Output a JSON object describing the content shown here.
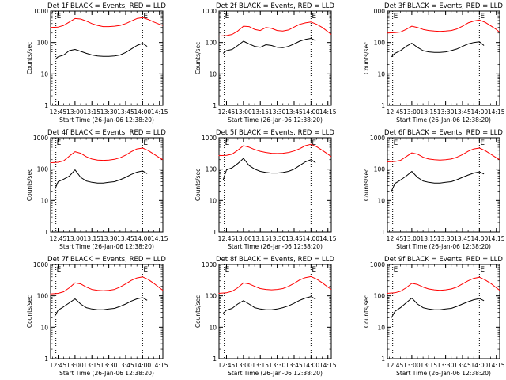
{
  "chart_data": {
    "type": "line",
    "figure_layout": "3x3 grid",
    "xlabel": "Start Time (26-Jan-06 12:38:20)",
    "ylabel": "Counts/sec",
    "x_ticks": [
      "12:45",
      "13:00",
      "13:15",
      "13:30",
      "13:45",
      "14:00",
      "14:15"
    ],
    "y_ticks": [
      "1",
      "10",
      "100",
      "1000"
    ],
    "y_scale": "log",
    "ylim": [
      1,
      1000
    ],
    "xlim": [
      "12:38:20",
      "14:18"
    ],
    "grid": false,
    "colors": {
      "events": "#000000",
      "lld": "#ff0000",
      "markers": "#000000"
    },
    "marker_labels": [
      "E",
      "E"
    ],
    "marker_times": [
      "12:43",
      "14:00"
    ],
    "panels": [
      {
        "title": "Det 1f BLACK = Events, RED = LLD",
        "series": [
          {
            "color": "#ff0000",
            "x": [
              "12:38",
              "12:45",
              "12:50",
              "12:55",
              "13:00",
              "13:05",
              "13:10",
              "13:15",
              "13:20",
              "13:25",
              "13:30",
              "13:35",
              "13:40",
              "13:45",
              "13:50",
              "13:55",
              "14:00",
              "14:05",
              "14:10",
              "14:15",
              "14:18"
            ],
            "values": [
              300,
              310,
              350,
              450,
              580,
              560,
              480,
              400,
              350,
              320,
              320,
              330,
              350,
              400,
              480,
              580,
              620,
              540,
              450,
              380,
              350
            ]
          },
          {
            "color": "#000000",
            "x": [
              "12:42",
              "12:45",
              "12:50",
              "12:55",
              "13:00",
              "13:05",
              "13:10",
              "13:15",
              "13:20",
              "13:25",
              "13:30",
              "13:35",
              "13:40",
              "13:45",
              "13:50",
              "13:55",
              "14:00",
              "14:04"
            ],
            "values": [
              28,
              35,
              40,
              55,
              60,
              52,
              45,
              40,
              37,
              36,
              36,
              37,
              40,
              48,
              62,
              80,
              95,
              75
            ]
          }
        ]
      },
      {
        "title": "Det 2f BLACK = Events, RED = LLD",
        "series": [
          {
            "color": "#ff0000",
            "x": [
              "12:38",
              "12:45",
              "12:50",
              "12:55",
              "13:00",
              "13:05",
              "13:10",
              "13:15",
              "13:20",
              "13:25",
              "13:30",
              "13:35",
              "13:40",
              "13:45",
              "13:50",
              "13:55",
              "14:00",
              "14:05",
              "14:10",
              "14:15",
              "14:18"
            ],
            "values": [
              160,
              165,
              180,
              230,
              330,
              320,
              260,
              240,
              300,
              280,
              240,
              230,
              250,
              310,
              380,
              420,
              450,
              380,
              300,
              220,
              180
            ]
          },
          {
            "color": "#000000",
            "x": [
              "12:42",
              "12:45",
              "12:50",
              "12:55",
              "13:00",
              "13:05",
              "13:10",
              "13:15",
              "13:20",
              "13:25",
              "13:30",
              "13:35",
              "13:40",
              "13:45",
              "13:50",
              "13:55",
              "14:00",
              "14:04"
            ],
            "values": [
              45,
              55,
              60,
              80,
              110,
              90,
              75,
              70,
              85,
              80,
              70,
              68,
              75,
              90,
              110,
              125,
              135,
              115
            ]
          }
        ]
      },
      {
        "title": "Det 3f BLACK = Events, RED = LLD",
        "series": [
          {
            "color": "#ff0000",
            "x": [
              "12:38",
              "12:45",
              "12:50",
              "12:55",
              "13:00",
              "13:05",
              "13:10",
              "13:15",
              "13:20",
              "13:25",
              "13:30",
              "13:35",
              "13:40",
              "13:45",
              "13:50",
              "13:55",
              "14:00",
              "14:05",
              "14:10",
              "14:15",
              "14:18"
            ],
            "values": [
              200,
              205,
              215,
              260,
              330,
              300,
              260,
              240,
              230,
              225,
              230,
              240,
              270,
              330,
              420,
              480,
              520,
              440,
              340,
              260,
              210
            ]
          },
          {
            "color": "#000000",
            "x": [
              "12:42",
              "12:45",
              "12:50",
              "12:55",
              "13:00",
              "13:05",
              "13:10",
              "13:15",
              "13:20",
              "13:25",
              "13:30",
              "13:35",
              "13:40",
              "13:45",
              "13:50",
              "13:55",
              "14:00",
              "14:04"
            ],
            "values": [
              35,
              45,
              55,
              75,
              95,
              70,
              55,
              50,
              48,
              48,
              50,
              55,
              62,
              75,
              90,
              100,
              105,
              80
            ]
          }
        ]
      },
      {
        "title": "Det 4f BLACK = Events, RED = LLD",
        "series": [
          {
            "color": "#ff0000",
            "x": [
              "12:38",
              "12:45",
              "12:50",
              "12:55",
              "13:00",
              "13:05",
              "13:10",
              "13:15",
              "13:20",
              "13:25",
              "13:30",
              "13:35",
              "13:40",
              "13:45",
              "13:50",
              "13:55",
              "14:00",
              "14:05",
              "14:10",
              "14:15",
              "14:18"
            ],
            "values": [
              160,
              165,
              185,
              260,
              360,
              320,
              250,
              210,
              195,
              190,
              195,
              205,
              230,
              280,
              360,
              440,
              470,
              390,
              300,
              230,
              200
            ]
          },
          {
            "color": "#000000",
            "x": [
              "12:42",
              "12:45",
              "12:50",
              "12:55",
              "13:00",
              "13:05",
              "13:10",
              "13:15",
              "13:20",
              "13:25",
              "13:30",
              "13:35",
              "13:40",
              "13:45",
              "13:50",
              "13:55",
              "14:00",
              "14:04"
            ],
            "values": [
              22,
              40,
              48,
              60,
              95,
              55,
              42,
              38,
              36,
              36,
              38,
              40,
              46,
              55,
              68,
              80,
              88,
              72
            ]
          }
        ]
      },
      {
        "title": "Det 5f BLACK = Events, RED = LLD",
        "series": [
          {
            "color": "#ff0000",
            "x": [
              "12:38",
              "12:45",
              "12:50",
              "12:55",
              "13:00",
              "13:05",
              "13:10",
              "13:15",
              "13:20",
              "13:25",
              "13:30",
              "13:35",
              "13:40",
              "13:45",
              "13:50",
              "13:55",
              "14:00",
              "14:05",
              "14:10",
              "14:15",
              "14:18"
            ],
            "values": [
              270,
              275,
              300,
              400,
              560,
              500,
              420,
              370,
              340,
              320,
              315,
              320,
              340,
              380,
              450,
              560,
              620,
              520,
              400,
              300,
              250
            ]
          },
          {
            "color": "#000000",
            "x": [
              "12:42",
              "12:45",
              "12:50",
              "12:55",
              "13:00",
              "13:05",
              "13:10",
              "13:15",
              "13:20",
              "13:25",
              "13:30",
              "13:35",
              "13:40",
              "13:45",
              "13:50",
              "13:55",
              "14:00",
              "14:04"
            ],
            "values": [
              45,
              95,
              110,
              150,
              220,
              130,
              100,
              85,
              78,
              75,
              75,
              78,
              85,
              100,
              130,
              170,
              200,
              160
            ]
          }
        ]
      },
      {
        "title": "Det 6f BLACK = Events, RED = LLD",
        "series": [
          {
            "color": "#ff0000",
            "x": [
              "12:38",
              "12:45",
              "12:50",
              "12:55",
              "13:00",
              "13:05",
              "13:10",
              "13:15",
              "13:20",
              "13:25",
              "13:30",
              "13:35",
              "13:40",
              "13:45",
              "13:50",
              "13:55",
              "14:00",
              "14:05",
              "14:10",
              "14:15",
              "14:18"
            ],
            "values": [
              170,
              175,
              190,
              250,
              330,
              300,
              240,
              210,
              200,
              195,
              200,
              210,
              240,
              290,
              370,
              440,
              470,
              390,
              300,
              230,
              200
            ]
          },
          {
            "color": "#000000",
            "x": [
              "12:42",
              "12:45",
              "12:50",
              "12:55",
              "13:00",
              "13:05",
              "13:10",
              "13:15",
              "13:20",
              "13:25",
              "13:30",
              "13:35",
              "13:40",
              "13:45",
              "13:50",
              "13:55",
              "14:00",
              "14:04"
            ],
            "values": [
              20,
              35,
              45,
              60,
              85,
              55,
              42,
              38,
              36,
              36,
              38,
              40,
              46,
              55,
              65,
              75,
              82,
              70
            ]
          }
        ]
      },
      {
        "title": "Det 7f BLACK = Events, RED = LLD",
        "series": [
          {
            "color": "#ff0000",
            "x": [
              "12:38",
              "12:45",
              "12:50",
              "12:55",
              "13:00",
              "13:05",
              "13:10",
              "13:15",
              "13:20",
              "13:25",
              "13:30",
              "13:35",
              "13:40",
              "13:45",
              "13:50",
              "13:55",
              "14:00",
              "14:05",
              "14:10",
              "14:15",
              "14:18"
            ],
            "values": [
              115,
              120,
              135,
              180,
              260,
              240,
              190,
              160,
              150,
              145,
              150,
              160,
              190,
              240,
              310,
              370,
              400,
              330,
              250,
              180,
              150
            ]
          },
          {
            "color": "#000000",
            "x": [
              "12:42",
              "12:45",
              "12:50",
              "12:55",
              "13:00",
              "13:05",
              "13:10",
              "13:15",
              "13:20",
              "13:25",
              "13:30",
              "13:35",
              "13:40",
              "13:45",
              "13:50",
              "13:55",
              "14:00",
              "14:04"
            ],
            "values": [
              22,
              35,
              45,
              60,
              80,
              55,
              42,
              38,
              36,
              36,
              38,
              40,
              46,
              55,
              68,
              80,
              88,
              72
            ]
          }
        ]
      },
      {
        "title": "Det 8f BLACK = Events, RED = LLD",
        "series": [
          {
            "color": "#ff0000",
            "x": [
              "12:38",
              "12:45",
              "12:50",
              "12:55",
              "13:00",
              "13:05",
              "13:10",
              "13:15",
              "13:20",
              "13:25",
              "13:30",
              "13:35",
              "13:40",
              "13:45",
              "13:50",
              "13:55",
              "14:00",
              "14:05",
              "14:10",
              "14:15",
              "14:18"
            ],
            "values": [
              120,
              125,
              140,
              180,
              260,
              240,
              200,
              170,
              160,
              155,
              160,
              170,
              200,
              250,
              320,
              380,
              410,
              340,
              260,
              190,
              160
            ]
          },
          {
            "color": "#000000",
            "x": [
              "12:42",
              "12:45",
              "12:50",
              "12:55",
              "13:00",
              "13:05",
              "13:10",
              "13:15",
              "13:20",
              "13:25",
              "13:30",
              "13:35",
              "13:40",
              "13:45",
              "13:50",
              "13:55",
              "14:00",
              "14:04"
            ],
            "values": [
              28,
              35,
              40,
              55,
              70,
              55,
              42,
              38,
              36,
              36,
              38,
              42,
              48,
              58,
              72,
              85,
              95,
              78
            ]
          }
        ]
      },
      {
        "title": "Det 9f BLACK = Events, RED = LLD",
        "series": [
          {
            "color": "#ff0000",
            "x": [
              "12:38",
              "12:45",
              "12:50",
              "12:55",
              "13:00",
              "13:05",
              "13:10",
              "13:15",
              "13:20",
              "13:25",
              "13:30",
              "13:35",
              "13:40",
              "13:45",
              "13:50",
              "13:55",
              "14:00",
              "14:05",
              "14:10",
              "14:15",
              "14:18"
            ],
            "values": [
              120,
              125,
              140,
              180,
              250,
              230,
              190,
              165,
              155,
              150,
              155,
              165,
              190,
              240,
              300,
              360,
              390,
              320,
              250,
              180,
              150
            ]
          },
          {
            "color": "#000000",
            "x": [
              "12:42",
              "12:45",
              "12:50",
              "12:55",
              "13:00",
              "13:05",
              "13:10",
              "13:15",
              "13:20",
              "13:25",
              "13:30",
              "13:35",
              "13:40",
              "13:45",
              "13:50",
              "13:55",
              "14:00",
              "14:04"
            ],
            "values": [
              20,
              32,
              42,
              60,
              85,
              55,
              42,
              38,
              36,
              36,
              38,
              40,
              46,
              55,
              65,
              75,
              82,
              70
            ]
          }
        ]
      }
    ]
  }
}
